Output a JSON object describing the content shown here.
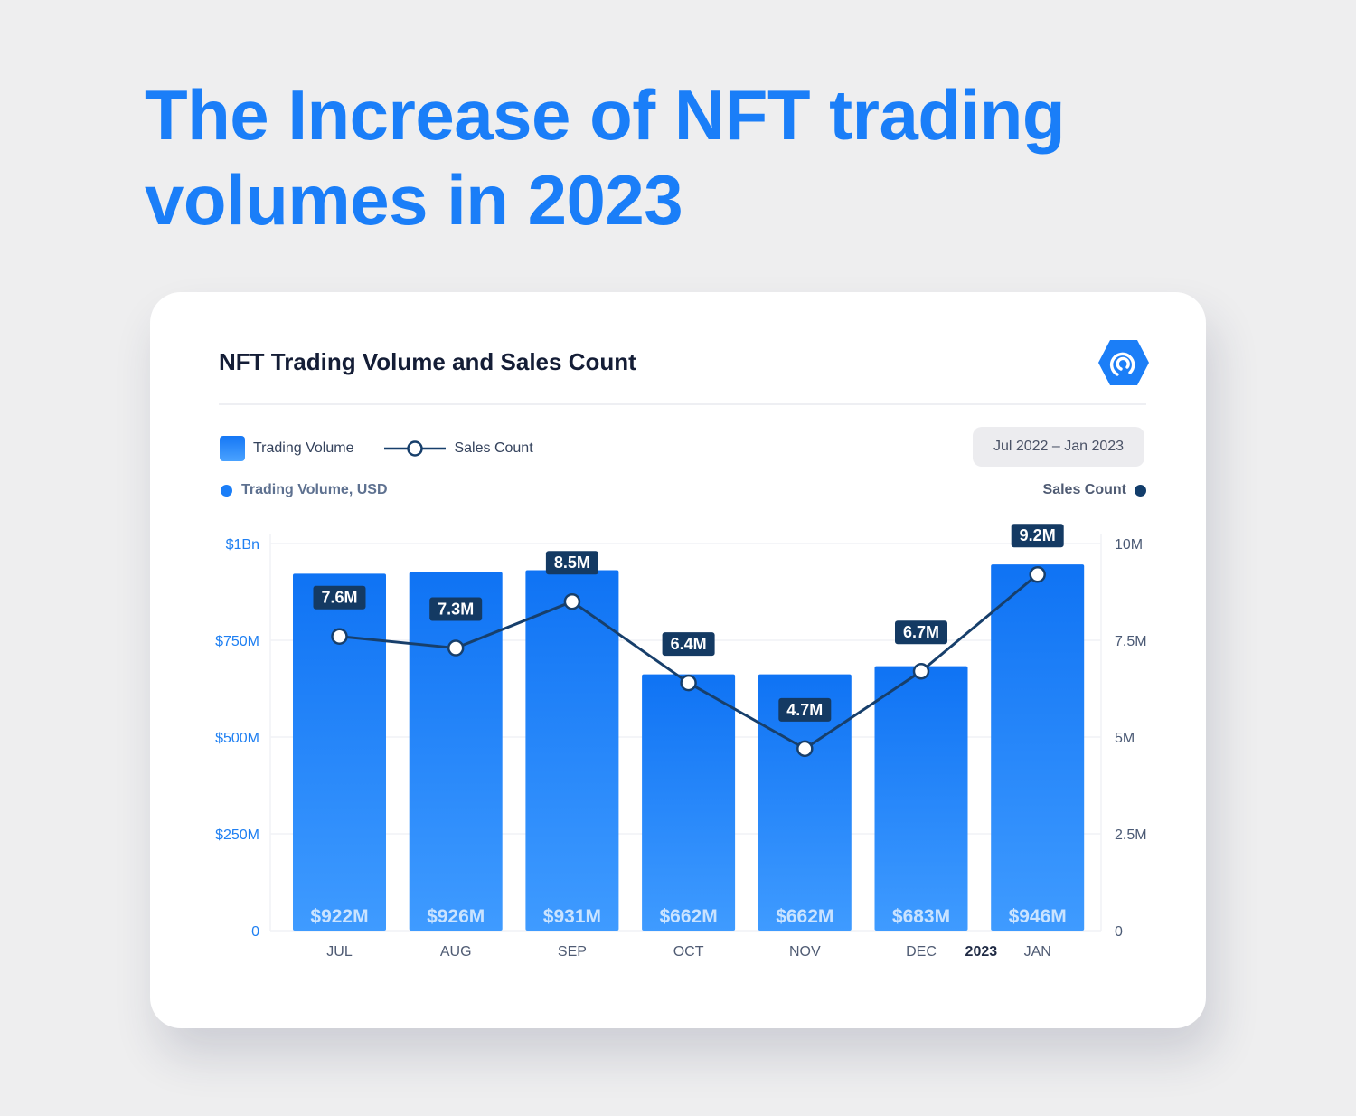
{
  "headline": {
    "line1": "The Increase of NFT trading",
    "line2": "volumes in 2023"
  },
  "card": {
    "title": "NFT Trading Volume and Sales Count",
    "logo_icon": "dappradar-logo-icon",
    "legend": {
      "bar_label": "Trading Volume",
      "line_label": "Sales Count"
    },
    "date_range": "Jul 2022 – Jan 2023",
    "left_axis_title": "Trading Volume, USD",
    "right_axis_title": "Sales Count"
  },
  "colors": {
    "accent": "#1a7ef8",
    "line": "#173f6b",
    "label_bg": "#143a63"
  },
  "chart_data": {
    "type": "bar",
    "categories": [
      "JUL",
      "AUG",
      "SEP",
      "OCT",
      "NOV",
      "DEC",
      "JAN"
    ],
    "year_marker": "2023",
    "series": [
      {
        "name": "Trading Volume",
        "type": "bar",
        "axis": "left",
        "values": [
          922,
          926,
          931,
          662,
          662,
          683,
          946
        ],
        "unit": "M USD",
        "labels": [
          "$922M",
          "$926M",
          "$931M",
          "$662M",
          "$662M",
          "$683M",
          "$946M"
        ]
      },
      {
        "name": "Sales Count",
        "type": "line",
        "axis": "right",
        "values": [
          7.6,
          7.3,
          8.5,
          6.4,
          4.7,
          6.7,
          9.2
        ],
        "unit": "M",
        "labels": [
          "7.6M",
          "7.3M",
          "8.5M",
          "6.4M",
          "4.7M",
          "6.7M",
          "9.2M"
        ]
      }
    ],
    "y_left": {
      "range": [
        0,
        1000
      ],
      "ticks": [
        0,
        250,
        500,
        750,
        1000
      ],
      "tick_labels": [
        "0",
        "$250M",
        "$500M",
        "$750M",
        "$1Bn"
      ]
    },
    "y_right": {
      "range": [
        0,
        10
      ],
      "ticks": [
        0,
        2.5,
        5,
        7.5,
        10
      ],
      "tick_labels": [
        "0",
        "2.5M",
        "5M",
        "7.5M",
        "10M"
      ]
    },
    "grid": true,
    "legend_position": "top-left"
  }
}
